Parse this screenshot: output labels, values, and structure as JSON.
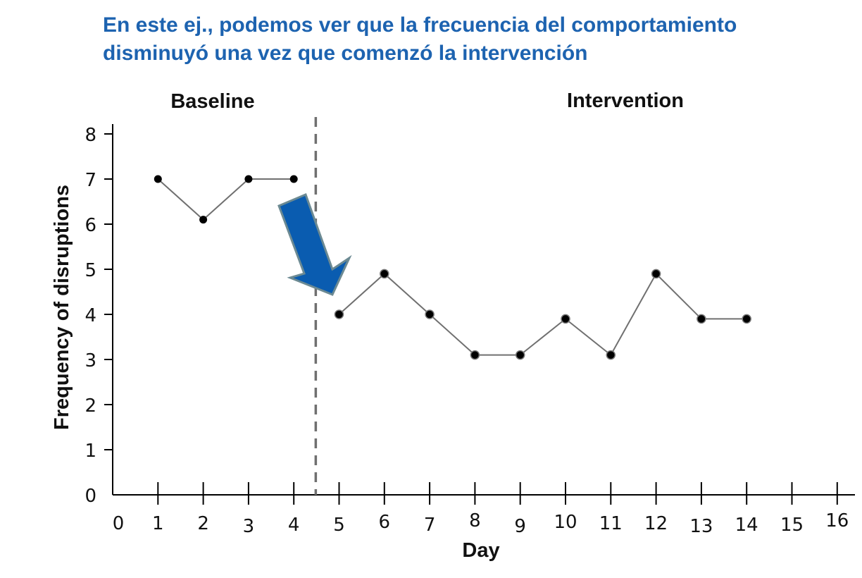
{
  "headline": {
    "line1": "En este ej., podemos ver que la frecuencia del comportamiento",
    "line2": "disminuyó una vez que comenzó la intervención"
  },
  "colors": {
    "headline": "#1d63b0",
    "arrow_fill": "#0a5cb0",
    "arrow_stroke": "#6c8a93",
    "line": "#707070",
    "marker": "#000000",
    "phase_line": "#707070"
  },
  "chart_data": {
    "type": "line",
    "xlabel": "Day",
    "ylabel": "Frequency of disruptions",
    "xlim": [
      0,
      16
    ],
    "ylim": [
      0,
      8
    ],
    "x_ticks": [
      0,
      1,
      2,
      3,
      4,
      5,
      6,
      7,
      8,
      9,
      10,
      11,
      12,
      13,
      14,
      15,
      16
    ],
    "y_ticks": [
      0,
      1,
      2,
      3,
      4,
      5,
      6,
      7,
      8
    ],
    "grid": false,
    "phase_change_x": 4.5,
    "phases": [
      {
        "name": "Baseline",
        "x": [
          1,
          2,
          3,
          4
        ],
        "y": [
          7,
          6.1,
          7,
          7
        ]
      },
      {
        "name": "Intervention",
        "x": [
          5,
          6,
          7,
          8,
          9,
          10,
          11,
          12,
          13,
          14
        ],
        "y": [
          4,
          4.9,
          4,
          3.1,
          3.1,
          3.9,
          3.1,
          4.9,
          3.9,
          3.9
        ]
      }
    ],
    "annotation": "arrow pointing down from baseline to intervention"
  }
}
